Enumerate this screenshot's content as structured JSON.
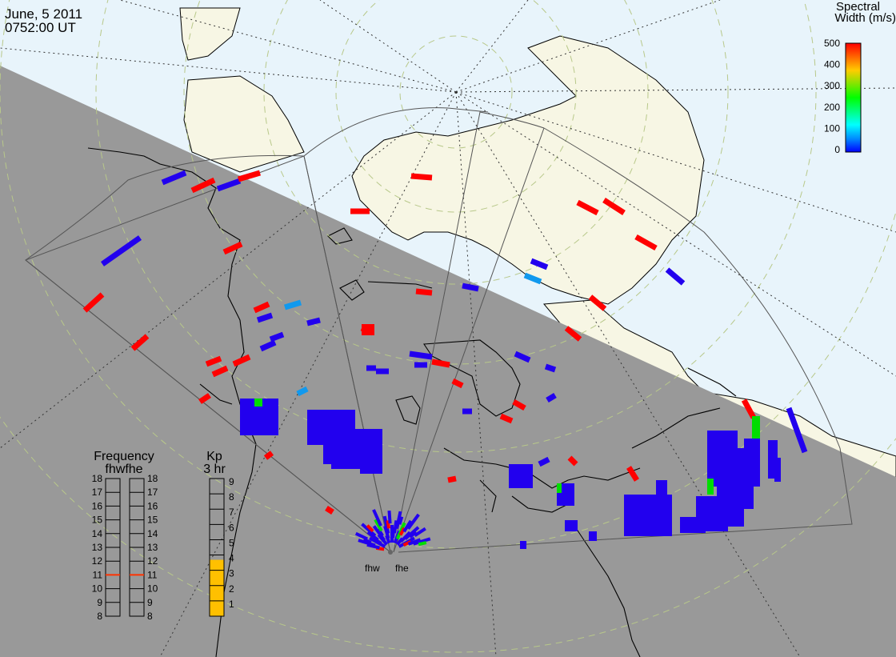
{
  "header": {
    "date": "June, 5 2011",
    "time": "0752:00 UT"
  },
  "colorbar": {
    "title_line1": "Spectral",
    "title_line2": "Width (m/s)",
    "ticks": [
      "500",
      "400",
      "300",
      "200",
      "100",
      "0"
    ],
    "colors": [
      "#ff0000",
      "#ffff00",
      "#00ff00",
      "#00ffff",
      "#0000ff"
    ]
  },
  "stations": {
    "west": "fhw",
    "east": "fhe"
  },
  "frequency_panel": {
    "title": "Frequency",
    "subtitle": "fhwfhe",
    "ticks": [
      "18",
      "17",
      "16",
      "15",
      "14",
      "13",
      "12",
      "11",
      "10",
      "9",
      "8"
    ],
    "fhw_value": 11,
    "fhe_value": 11
  },
  "kp_panel": {
    "title": "Kp",
    "subtitle": "3 hr",
    "ticks": [
      "9",
      "8",
      "7",
      "6",
      "5",
      "4",
      "3",
      "2",
      "1"
    ],
    "value": 4,
    "bar_color": "#ffc000"
  },
  "map_colors": {
    "ocean_day": "#e8f4fb",
    "land_day": "#f7f6e4",
    "night": "#999999"
  }
}
